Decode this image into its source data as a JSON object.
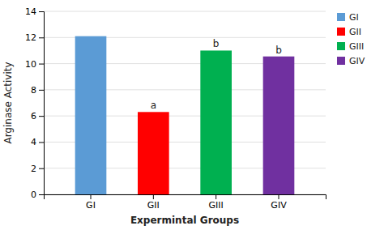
{
  "chart_data": {
    "type": "bar",
    "categories": [
      "GI",
      "GII",
      "GIII",
      "GIV"
    ],
    "values": [
      12.1,
      6.3,
      11.0,
      10.55
    ],
    "colors": [
      "#5B9BD5",
      "#FF0000",
      "#00B050",
      "#7030A0"
    ],
    "annotations": [
      null,
      "a",
      "b",
      "b"
    ],
    "xlabel": "Expermintal Groups",
    "ylabel": "Arginase Activity",
    "ylim": [
      0,
      14
    ],
    "yticks": [
      0,
      2,
      4,
      6,
      8,
      10,
      12,
      14
    ],
    "grid": true,
    "legend": "right"
  }
}
